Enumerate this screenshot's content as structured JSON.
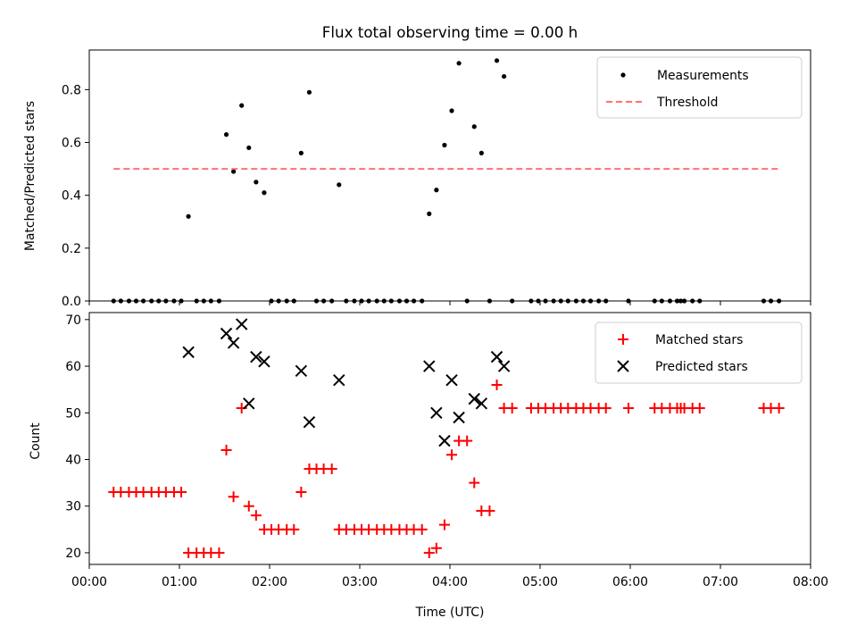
{
  "chart_data": [
    {
      "type": "scatter",
      "panel": "top",
      "title": "Flux total observing time = 0.00 h",
      "xlabel": "",
      "ylabel": "Matched/Predicted stars",
      "xlim": [
        0,
        8
      ],
      "ylim": [
        0,
        0.95
      ],
      "x_unit": "hours (UTC)",
      "yticks": [
        0.0,
        0.2,
        0.4,
        0.6,
        0.8
      ],
      "ytick_labels": [
        "0.0",
        "0.2",
        "0.4",
        "0.6",
        "0.8"
      ],
      "legend_placement": "top-right",
      "grid": false,
      "series": [
        {
          "name": "Measurements",
          "marker": "dot",
          "color": "#000000",
          "x": [
            0.27,
            0.35,
            0.44,
            0.52,
            0.6,
            0.69,
            0.77,
            0.85,
            0.94,
            1.02,
            1.1,
            1.19,
            1.27,
            1.35,
            1.44,
            1.52,
            1.6,
            1.69,
            1.77,
            1.85,
            1.94,
            2.02,
            2.1,
            2.19,
            2.27,
            2.35,
            2.44,
            2.52,
            2.6,
            2.69,
            2.77,
            2.85,
            2.94,
            3.02,
            3.1,
            3.19,
            3.27,
            3.35,
            3.44,
            3.52,
            3.6,
            3.69,
            3.77,
            3.85,
            3.94,
            4.02,
            4.1,
            4.19,
            4.27,
            4.35,
            4.44,
            4.52,
            4.6,
            4.69,
            4.9,
            4.98,
            5.06,
            5.15,
            5.23,
            5.31,
            5.4,
            5.48,
            5.56,
            5.65,
            5.73,
            5.98,
            6.27,
            6.35,
            6.44,
            6.52,
            6.56,
            6.6,
            6.69,
            6.77,
            7.48,
            7.56,
            7.65
          ],
          "y": [
            0,
            0,
            0,
            0,
            0,
            0,
            0,
            0,
            0,
            0,
            0.32,
            0,
            0,
            0,
            0,
            0.63,
            0.49,
            0.74,
            0.58,
            0.45,
            0.41,
            0,
            0,
            0,
            0,
            0.56,
            0.79,
            0,
            0,
            0,
            0.44,
            0,
            0,
            0,
            0,
            0,
            0,
            0,
            0,
            0,
            0,
            0,
            0.33,
            0.42,
            0.59,
            0.72,
            0.9,
            0,
            0.66,
            0.56,
            0,
            0.91,
            0.85,
            0,
            0,
            0,
            0,
            0,
            0,
            0,
            0,
            0,
            0,
            0,
            0,
            0,
            0,
            0,
            0,
            0,
            0,
            0,
            0,
            0,
            0,
            0,
            0
          ]
        },
        {
          "name": "Threshold",
          "style": "dashed",
          "color": "#ff7070",
          "x": [
            0.27,
            7.65
          ],
          "y": [
            0.5,
            0.5
          ]
        }
      ]
    },
    {
      "type": "scatter",
      "panel": "bottom",
      "title": "",
      "xlabel": "Time (UTC)",
      "ylabel": "Count",
      "xlim": [
        0,
        8
      ],
      "ylim": [
        17.5,
        71.5
      ],
      "xticks": [
        0,
        1,
        2,
        3,
        4,
        5,
        6,
        7,
        8
      ],
      "xtick_labels": [
        "00:00",
        "01:00",
        "02:00",
        "03:00",
        "04:00",
        "05:00",
        "06:00",
        "07:00",
        "08:00"
      ],
      "yticks": [
        20,
        30,
        40,
        50,
        60,
        70
      ],
      "ytick_labels": [
        "20",
        "30",
        "40",
        "50",
        "60",
        "70"
      ],
      "legend_placement": "top-right",
      "grid": false,
      "series": [
        {
          "name": "Matched stars",
          "marker": "plus",
          "color": "#ff0000",
          "x": [
            0.27,
            0.35,
            0.44,
            0.52,
            0.6,
            0.69,
            0.77,
            0.85,
            0.94,
            1.02,
            1.1,
            1.19,
            1.27,
            1.35,
            1.44,
            1.52,
            1.6,
            1.69,
            1.77,
            1.85,
            1.94,
            2.02,
            2.1,
            2.19,
            2.27,
            2.35,
            2.44,
            2.52,
            2.6,
            2.69,
            2.77,
            2.85,
            2.94,
            3.02,
            3.1,
            3.19,
            3.27,
            3.35,
            3.44,
            3.52,
            3.6,
            3.69,
            3.77,
            3.85,
            3.94,
            4.02,
            4.1,
            4.19,
            4.27,
            4.35,
            4.44,
            4.52,
            4.6,
            4.69,
            4.9,
            4.98,
            5.06,
            5.15,
            5.23,
            5.31,
            5.4,
            5.48,
            5.56,
            5.65,
            5.73,
            5.98,
            6.27,
            6.35,
            6.44,
            6.52,
            6.56,
            6.6,
            6.69,
            6.77,
            7.48,
            7.56,
            7.65
          ],
          "y": [
            33,
            33,
            33,
            33,
            33,
            33,
            33,
            33,
            33,
            33,
            20,
            20,
            20,
            20,
            20,
            42,
            32,
            51,
            30,
            28,
            25,
            25,
            25,
            25,
            25,
            33,
            38,
            38,
            38,
            38,
            25,
            25,
            25,
            25,
            25,
            25,
            25,
            25,
            25,
            25,
            25,
            25,
            20,
            21,
            26,
            41,
            44,
            44,
            35,
            29,
            29,
            56,
            51,
            51,
            51,
            51,
            51,
            51,
            51,
            51,
            51,
            51,
            51,
            51,
            51,
            51,
            51,
            51,
            51,
            51,
            51,
            51,
            51,
            51,
            51,
            51,
            51
          ]
        },
        {
          "name": "Predicted stars",
          "marker": "x",
          "color": "#000000",
          "x": [
            1.1,
            1.52,
            1.6,
            1.69,
            1.77,
            1.85,
            1.94,
            2.35,
            2.44,
            2.77,
            3.77,
            3.85,
            3.94,
            4.02,
            4.1,
            4.27,
            4.35,
            4.52,
            4.6
          ],
          "y": [
            63,
            67,
            65,
            69,
            52,
            62,
            61,
            59,
            48,
            57,
            60,
            50,
            44,
            57,
            49,
            53,
            52,
            62,
            60
          ]
        }
      ]
    }
  ]
}
